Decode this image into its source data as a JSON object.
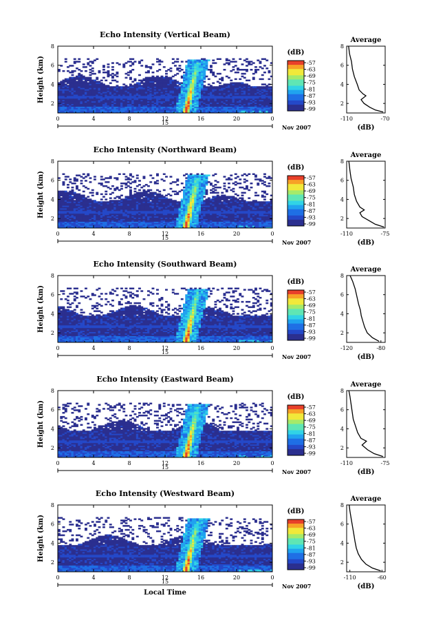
{
  "figure": {
    "x_axis_label": "Local Time",
    "date_label": "Nov 2007",
    "y_axis_label": "Height (km)",
    "unit_label": "(dB)",
    "avg_title": "Average",
    "avg_xlabel": "(dB)"
  },
  "colors": {
    "scale": [
      "#2b2f8f",
      "#2448c8",
      "#1f6fe5",
      "#20a3ef",
      "#31d3e6",
      "#5fe6b4",
      "#a6ea6a",
      "#f1e93a",
      "#f7a227",
      "#e8402a"
    ],
    "background": "#ffffff",
    "line": "#000000"
  },
  "chart_data": [
    {
      "type": "heatmap",
      "title": "Echo Intensity (Vertical Beam)",
      "ylabel": "Height (km)",
      "xlabel": "",
      "x_ticks": [
        "0",
        "4",
        "8",
        "12",
        "16",
        "20",
        "0"
      ],
      "y_ticks": [
        "2",
        "4",
        "6",
        "8"
      ],
      "date_tick": "15",
      "xlim": [
        0,
        24
      ],
      "ylim": [
        1,
        8
      ],
      "colorbar_levels": [
        "-57",
        "-63",
        "-69",
        "-75",
        "-81",
        "-87",
        "-93",
        "-99"
      ],
      "avg_profile": {
        "title": "Average",
        "x_ticks": [
          "-110",
          "-70"
        ],
        "xlim": [
          -110,
          -70
        ],
        "y_ticks": [
          "2",
          "4",
          "6",
          "8"
        ],
        "values": [
          {
            "h": 1.1,
            "db": -72
          },
          {
            "h": 1.3,
            "db": -80
          },
          {
            "h": 1.6,
            "db": -86
          },
          {
            "h": 2.0,
            "db": -92
          },
          {
            "h": 2.4,
            "db": -95
          },
          {
            "h": 2.8,
            "db": -90
          },
          {
            "h": 3.0,
            "db": -93
          },
          {
            "h": 3.4,
            "db": -97
          },
          {
            "h": 4.0,
            "db": -99
          },
          {
            "h": 4.8,
            "db": -102
          },
          {
            "h": 5.6,
            "db": -104
          },
          {
            "h": 6.4,
            "db": -105
          },
          {
            "h": 7.2,
            "db": -107
          },
          {
            "h": 8.0,
            "db": -108
          }
        ]
      }
    },
    {
      "type": "heatmap",
      "title": "Echo Intensity (Northward Beam)",
      "ylabel": "Height (km)",
      "xlabel": "",
      "x_ticks": [
        "0",
        "4",
        "8",
        "12",
        "16",
        "20",
        "0"
      ],
      "y_ticks": [
        "2",
        "4",
        "6",
        "8"
      ],
      "date_tick": "15",
      "xlim": [
        0,
        24
      ],
      "ylim": [
        1,
        8
      ],
      "colorbar_levels": [
        "-57",
        "-63",
        "-69",
        "-75",
        "-81",
        "-87",
        "-93",
        "-99"
      ],
      "avg_profile": {
        "title": "Average",
        "x_ticks": [
          "-110",
          "-75"
        ],
        "xlim": [
          -110,
          -75
        ],
        "y_ticks": [
          "2",
          "4",
          "6",
          "8"
        ],
        "values": [
          {
            "h": 1.1,
            "db": -76
          },
          {
            "h": 1.4,
            "db": -84
          },
          {
            "h": 1.8,
            "db": -90
          },
          {
            "h": 2.2,
            "db": -96
          },
          {
            "h": 2.6,
            "db": -98
          },
          {
            "h": 2.9,
            "db": -94
          },
          {
            "h": 3.2,
            "db": -98
          },
          {
            "h": 3.8,
            "db": -101
          },
          {
            "h": 4.5,
            "db": -103
          },
          {
            "h": 5.3,
            "db": -104
          },
          {
            "h": 6.2,
            "db": -106
          },
          {
            "h": 7.0,
            "db": -107
          },
          {
            "h": 8.0,
            "db": -108
          }
        ]
      }
    },
    {
      "type": "heatmap",
      "title": "Echo Intensity (Southward Beam)",
      "ylabel": "Height (km)",
      "xlabel": "",
      "x_ticks": [
        "0",
        "4",
        "8",
        "12",
        "16",
        "20",
        "0"
      ],
      "y_ticks": [
        "2",
        "4",
        "6",
        "8"
      ],
      "date_tick": "15",
      "xlim": [
        0,
        24
      ],
      "ylim": [
        1,
        8
      ],
      "colorbar_levels": [
        "-57",
        "-63",
        "-69",
        "-75",
        "-81",
        "-87",
        "-93",
        "-99"
      ],
      "avg_profile": {
        "title": "Average",
        "x_ticks": [
          "-120",
          "-80"
        ],
        "xlim": [
          -120,
          -75
        ],
        "y_ticks": [
          "2",
          "4",
          "6",
          "8"
        ],
        "values": [
          {
            "h": 1.1,
            "db": -82
          },
          {
            "h": 1.5,
            "db": -90
          },
          {
            "h": 2.0,
            "db": -96
          },
          {
            "h": 2.6,
            "db": -99
          },
          {
            "h": 3.2,
            "db": -101
          },
          {
            "h": 3.8,
            "db": -103
          },
          {
            "h": 4.4,
            "db": -104
          },
          {
            "h": 5.0,
            "db": -106
          },
          {
            "h": 5.8,
            "db": -108
          },
          {
            "h": 6.6,
            "db": -110
          },
          {
            "h": 7.4,
            "db": -113
          },
          {
            "h": 8.0,
            "db": -116
          }
        ]
      }
    },
    {
      "type": "heatmap",
      "title": "Echo Intensity (Eastward Beam)",
      "ylabel": "Height (km)",
      "xlabel": "",
      "x_ticks": [
        "0",
        "4",
        "8",
        "12",
        "16",
        "20",
        "0"
      ],
      "y_ticks": [
        "2",
        "4",
        "6",
        "8"
      ],
      "date_tick": "15",
      "xlim": [
        0,
        24
      ],
      "ylim": [
        1,
        8
      ],
      "colorbar_levels": [
        "-57",
        "-63",
        "-69",
        "-75",
        "-81",
        "-87",
        "-93",
        "-99"
      ],
      "avg_profile": {
        "title": "Average",
        "x_ticks": [
          "-110",
          "-75"
        ],
        "xlim": [
          -110,
          -75
        ],
        "y_ticks": [
          "2",
          "4",
          "6",
          "8"
        ],
        "values": [
          {
            "h": 1.1,
            "db": -77
          },
          {
            "h": 1.4,
            "db": -85
          },
          {
            "h": 1.8,
            "db": -91
          },
          {
            "h": 2.3,
            "db": -96
          },
          {
            "h": 2.7,
            "db": -92
          },
          {
            "h": 3.0,
            "db": -97
          },
          {
            "h": 3.6,
            "db": -100
          },
          {
            "h": 4.3,
            "db": -102
          },
          {
            "h": 5.0,
            "db": -104
          },
          {
            "h": 5.8,
            "db": -105
          },
          {
            "h": 6.6,
            "db": -106
          },
          {
            "h": 7.4,
            "db": -107
          },
          {
            "h": 8.0,
            "db": -108
          }
        ]
      }
    },
    {
      "type": "heatmap",
      "title": "Echo Intensity (Westward Beam)",
      "ylabel": "Height (km)",
      "xlabel": "Local Time",
      "x_ticks": [
        "0",
        "4",
        "8",
        "12",
        "16",
        "20",
        "0"
      ],
      "y_ticks": [
        "2",
        "4",
        "6",
        "8"
      ],
      "date_tick": "15",
      "xlim": [
        0,
        24
      ],
      "ylim": [
        1,
        8
      ],
      "colorbar_levels": [
        "-57",
        "-63",
        "-69",
        "-75",
        "-81",
        "-87",
        "-93",
        "-99"
      ],
      "avg_profile": {
        "title": "Average",
        "x_ticks": [
          "-110",
          "-60"
        ],
        "xlim": [
          -115,
          -55
        ],
        "y_ticks": [
          "2",
          "4",
          "6",
          "8"
        ],
        "values": [
          {
            "h": 1.1,
            "db": -62
          },
          {
            "h": 1.4,
            "db": -75
          },
          {
            "h": 1.8,
            "db": -85
          },
          {
            "h": 2.3,
            "db": -92
          },
          {
            "h": 2.9,
            "db": -97
          },
          {
            "h": 3.5,
            "db": -100
          },
          {
            "h": 4.2,
            "db": -102
          },
          {
            "h": 5.0,
            "db": -104
          },
          {
            "h": 5.8,
            "db": -106
          },
          {
            "h": 6.6,
            "db": -108
          },
          {
            "h": 7.4,
            "db": -110
          },
          {
            "h": 8.0,
            "db": -111
          }
        ]
      }
    }
  ]
}
